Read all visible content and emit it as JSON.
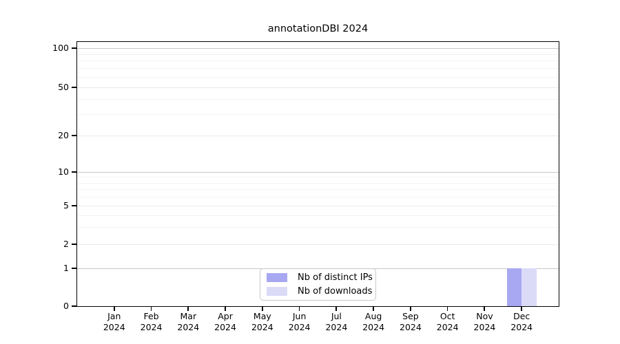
{
  "title": "annotationDBI 2024",
  "chart_data": {
    "type": "bar",
    "title": "annotationDBI 2024",
    "categories": [
      "Jan",
      "Feb",
      "Mar",
      "Apr",
      "May",
      "Jun",
      "Jul",
      "Aug",
      "Sep",
      "Oct",
      "Nov",
      "Dec"
    ],
    "year_label": "2024",
    "series": [
      {
        "name": "Nb of distinct IPs",
        "color": "#a8a8f2",
        "values": [
          0,
          0,
          0,
          0,
          0,
          0,
          0,
          0,
          0,
          0,
          0,
          1
        ]
      },
      {
        "name": "Nb of downloads",
        "color": "#dbdbf8",
        "values": [
          0,
          0,
          0,
          0,
          0,
          0,
          0,
          0,
          0,
          0,
          0,
          1
        ]
      }
    ],
    "xlabel": "",
    "ylabel": "",
    "y_axis": {
      "scale": "log-like (linear below 1)",
      "range": [
        0,
        100
      ],
      "ticks": [
        0,
        1,
        2,
        5,
        10,
        20,
        50,
        100
      ],
      "minor_ticks": [
        3,
        4,
        6,
        7,
        8,
        9,
        30,
        40,
        60,
        70,
        80,
        90
      ]
    },
    "grid": "horizontal",
    "legend": {
      "position": "bottom-center-inside",
      "entries": [
        "Nb of distinct IPs",
        "Nb of downloads"
      ]
    }
  }
}
